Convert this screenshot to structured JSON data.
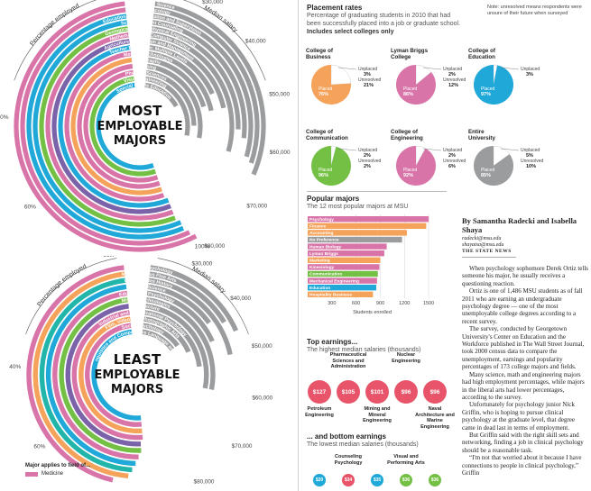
{
  "colors": {
    "pink": "#d874a8",
    "gray": "#9b9c9e",
    "blue": "#1fa8d8",
    "orange": "#f5a25a",
    "purple": "#7a63a8",
    "green": "#74c045",
    "red": "#e8546a",
    "teal": "#22b5aa"
  },
  "most": {
    "title_lines": [
      "MOST",
      "EMPLOYABLE",
      "MAJORS"
    ],
    "axis_label_left": "Percentage employed",
    "axis_label_right": "Median salary",
    "pct_ticks": [
      "40%",
      "60%",
      "80%",
      "100%"
    ],
    "salary_ticks": [
      "$30,000",
      "$40,000",
      "$50,000",
      "$60,000",
      "$70,000",
      "$80,000",
      "$90,000"
    ],
    "majors": [
      {
        "name": "Actuarial Science",
        "color": "pink",
        "pct": 100,
        "salary": 65000
      },
      {
        "name": "Pharmacology",
        "color": "pink",
        "pct": 99,
        "salary": 63000
      },
      {
        "name": "Educational Administration and Supervision",
        "color": "blue",
        "pct": 98,
        "salary": 62000
      },
      {
        "name": "School Student Counseling",
        "color": "blue",
        "pct": 98,
        "salary": 58000
      },
      {
        "name": "Geological and Geophysical Engineering",
        "color": "green",
        "pct": 97,
        "salary": 56000
      },
      {
        "name": "Mathematics and Computer Science",
        "color": "pink",
        "pct": 97,
        "salary": 62000
      },
      {
        "name": "Agriculture Production and Management",
        "color": "purple",
        "pct": 97,
        "salary": 50000
      },
      {
        "name": "Teacher Education: Multiple Levels",
        "color": "blue",
        "pct": 97,
        "salary": 45000
      },
      {
        "name": "Medical Technologies",
        "color": "pink",
        "pct": 96,
        "salary": 50000
      },
      {
        "name": "Geography",
        "color": "orange",
        "pct": 96,
        "salary": 48000
      },
      {
        "name": "Nursing",
        "color": "pink",
        "pct": 96,
        "salary": 60000
      },
      {
        "name": "Physical Sciences",
        "color": "pink",
        "pct": 96,
        "salary": 55000
      },
      {
        "name": "Visual Engineering",
        "color": "green",
        "pct": 96,
        "salary": 60000
      },
      {
        "name": "Special Needs Education",
        "color": "blue",
        "pct": 96,
        "salary": 43000
      }
    ]
  },
  "least": {
    "title_lines": [
      "LEAST",
      "EMPLOYABLE",
      "MAJORS"
    ],
    "axis_label_left": "Percentage employed",
    "axis_label_right": "Median salary",
    "pct_ticks": [
      "40%",
      "60%"
    ],
    "salary_ticks": [
      "$30,000",
      "$40,000",
      "$50,000",
      "$60,000",
      "$70,000",
      "$80,000"
    ],
    "majors": [
      {
        "name": "Clinical Psychology",
        "color": "pink",
        "pct": 80,
        "salary": 45000
      },
      {
        "name": "Miscellaneous Fine Arts",
        "color": "orange",
        "pct": 84,
        "salary": 42000
      },
      {
        "name": "United States History",
        "color": "teal",
        "pct": 85,
        "salary": 50000
      },
      {
        "name": "Library Science",
        "color": "blue",
        "pct": 86,
        "salary": 40000
      },
      {
        "name": "Educational Psychology",
        "color": "pink",
        "pct": 87,
        "salary": 45000
      },
      {
        "name": "Military Technologies",
        "color": "green",
        "pct": 88,
        "salary": 60000
      },
      {
        "name": "Architecture",
        "color": "purple",
        "pct": 88,
        "salary": 60000
      },
      {
        "name": "Industrial and Organizational Psychology",
        "color": "pink",
        "pct": 89,
        "salary": 52000
      },
      {
        "name": "Film, Video and Photographic Arts",
        "color": "orange",
        "pct": 89,
        "salary": 45000
      },
      {
        "name": "Social Psychology",
        "color": "pink",
        "pct": 89,
        "salary": 40000
      },
      {
        "name": "Linguistics and Comparative Language and Literature",
        "color": "blue",
        "pct": 89,
        "salary": 40000
      }
    ]
  },
  "legend": {
    "title": "Major applies to field of...",
    "items": [
      {
        "label": "Medicine",
        "color": "pink"
      }
    ]
  },
  "placement": {
    "title": "Placement rates",
    "subtitle": "Percentage of graduating students in 2010 that had been successfully placed into a job or graduate school.",
    "subtitle_bold": "Includes select colleges only",
    "note": "Note: unresolved means respondents were unsure of their future when surveyed",
    "pies": [
      {
        "name": "College of Business",
        "color": "orange",
        "placed": 76,
        "unplaced": 3,
        "unresolved": 21
      },
      {
        "name": "Lyman Briggs College",
        "color": "pink",
        "placed": 86,
        "unplaced": 2,
        "unresolved": 12
      },
      {
        "name": "College of Education",
        "color": "blue",
        "placed": 97,
        "unplaced": 3,
        "unresolved": null
      },
      {
        "name": "College of Communication",
        "color": "green",
        "placed": 96,
        "unplaced": 2,
        "unresolved": 2
      },
      {
        "name": "College of Engineering",
        "color": "pink",
        "placed": 92,
        "unplaced": 2,
        "unresolved": 6
      },
      {
        "name": "Entire University",
        "color": "gray",
        "placed": 85,
        "unplaced": 5,
        "unresolved": 10
      }
    ],
    "words": {
      "placed": "Placed",
      "unplaced": "Unplaced",
      "unresolved": "Unresolved"
    }
  },
  "popular": {
    "title": "Popular majors",
    "subtitle": "The 12 most popular majors at MSU",
    "xlabel": "Students enrolled",
    "ticks": [
      "300",
      "600",
      "900",
      "1200",
      "1500"
    ]
  },
  "chart_data": {
    "type": "bar",
    "title": "Popular majors",
    "subtitle": "The 12 most popular majors at MSU",
    "xlabel": "Students enrolled",
    "xlim": [
      0,
      1600
    ],
    "categories": [
      "Psychology",
      "Finance",
      "Accounting",
      "No Preference",
      "Human Biology",
      "Lyman Briggs",
      "Marketing",
      "Kinesiology",
      "Communication",
      "Mechanical Engineering",
      "Education",
      "Hospitality Business"
    ],
    "values": [
      1500,
      1470,
      1230,
      1170,
      980,
      950,
      900,
      890,
      870,
      860,
      850,
      810
    ],
    "colors": [
      "pink",
      "orange",
      "orange",
      "gray",
      "pink",
      "pink",
      "orange",
      "pink",
      "green",
      "pink",
      "blue",
      "orange"
    ]
  },
  "earnings": {
    "top_title": "Top earnings...",
    "top_subtitle": "The highest median salaries (thousands)",
    "top_items": [
      {
        "label": "Petroleum Engineering",
        "value": "$127"
      },
      {
        "label": "Pharmaceutical Sciences and Administration",
        "value": "$105"
      },
      {
        "label": "Mining and Mineral Engineering",
        "value": "$101"
      },
      {
        "label": "Nuclear Engineering",
        "value": "$96"
      },
      {
        "label": "Naval Architecture and Marine Engineering",
        "value": "$96"
      }
    ],
    "bottom_title": "... and bottom earnings",
    "bottom_subtitle": "The lowest median salaries (thousands)",
    "bottom_items": [
      {
        "label": "",
        "value": "$20"
      },
      {
        "label": "Counseling Psychology",
        "value": "$34"
      },
      {
        "label": "",
        "value": "$35"
      },
      {
        "label": "Visual and Performing Arts",
        "value": "$36"
      },
      {
        "label": "",
        "value": "$36"
      }
    ]
  },
  "article": {
    "byline": "By Samantha Radecki and Isabella Shaya",
    "emails": [
      "radecki@msu.edu",
      "shayaisa@msu.edu"
    ],
    "outlet": "THE STATE NEWS",
    "paragraphs": [
      "When psychology sophomore Derek Ortiz tells someone his major, he usually receives a questioning reaction.",
      "Ortiz is one of 1,486 MSU students as of fall 2011 who are earning an undergraduate psychology degree — one of the most unemployable college degrees according to a recent survey.",
      "The survey, conducted by Georgetown University's Center on Education and the Workforce published in The Wall Street Journal, took 2000 census data to compare the unemployment, earnings and popularity percentages of 173 college majors and fields.",
      "Many science, math and engineering majors had high employment percentages, while majors in the liberal arts had lower percentages, according to the survey.",
      "Unfortunately for psychology junior Nick Griffin, who is hoping to pursue clinical psychology at the graduate level, that degree came in dead last in terms of employment.",
      "But Griffin said with the right skill sets and networking, finding a job in clinical psychology should be a reasonable task.",
      "“I'm not that worried about it because I have connections to people in clinical psychology,” Griffin"
    ]
  }
}
